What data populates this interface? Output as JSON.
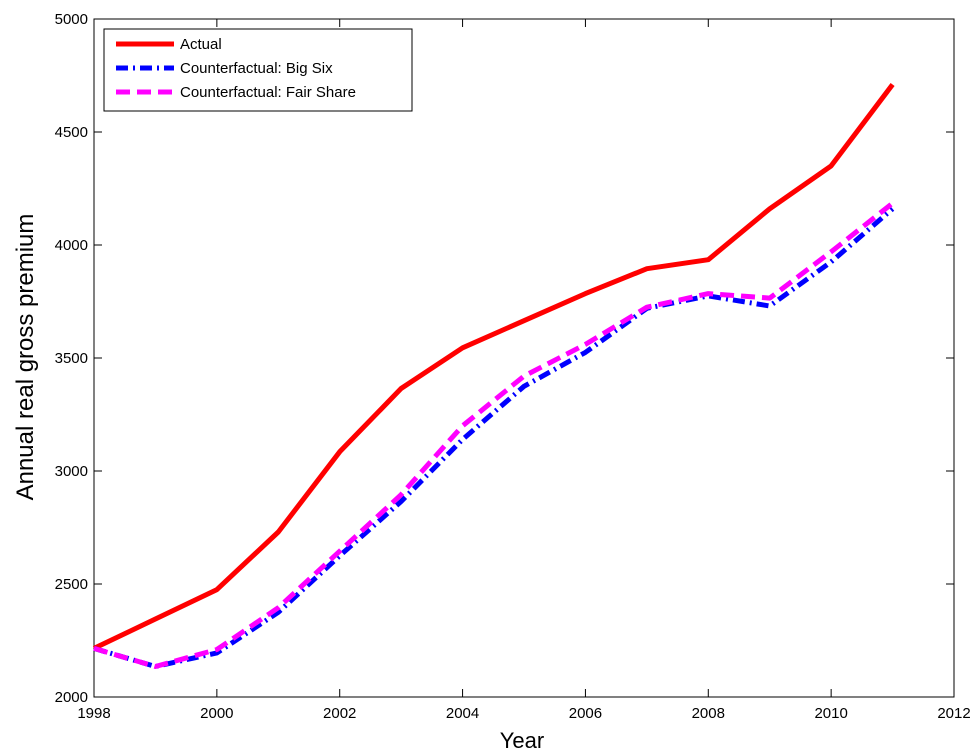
{
  "chart_data": {
    "type": "line",
    "title": "",
    "xlabel": "Year",
    "ylabel": "Annual real gross premium",
    "xlim": [
      1998,
      2012
    ],
    "ylim": [
      2000,
      5000
    ],
    "xticks": [
      "1998",
      "2000",
      "2002",
      "2004",
      "2006",
      "2008",
      "2010",
      "2012"
    ],
    "yticks": [
      "2000",
      "2500",
      "3000",
      "3500",
      "4000",
      "4500",
      "5000"
    ],
    "grid": false,
    "legend_position": "top-left",
    "x": [
      1998,
      1999,
      2000,
      2001,
      2002,
      2003,
      2004,
      2005,
      2006,
      2007,
      2008,
      2009,
      2010,
      2011
    ],
    "series": [
      {
        "name": "Actual",
        "color": "#ff0000",
        "style": "solid",
        "values": [
          2215,
          2345,
          2475,
          2730,
          3085,
          3365,
          3545,
          3665,
          3785,
          3895,
          3935,
          4160,
          4350,
          4710
        ]
      },
      {
        "name": "Counterfactual: Big Six",
        "color": "#0000ff",
        "style": "dash-dot",
        "values": [
          2215,
          2135,
          2195,
          2375,
          2625,
          2865,
          3140,
          3375,
          3525,
          3720,
          3775,
          3730,
          3925,
          4160
        ]
      },
      {
        "name": "Counterfactual: Fair Share",
        "color": "#ff00ff",
        "style": "dashed",
        "values": [
          2215,
          2135,
          2210,
          2395,
          2645,
          2895,
          3200,
          3420,
          3560,
          3725,
          3785,
          3765,
          3970,
          4185
        ]
      }
    ]
  }
}
